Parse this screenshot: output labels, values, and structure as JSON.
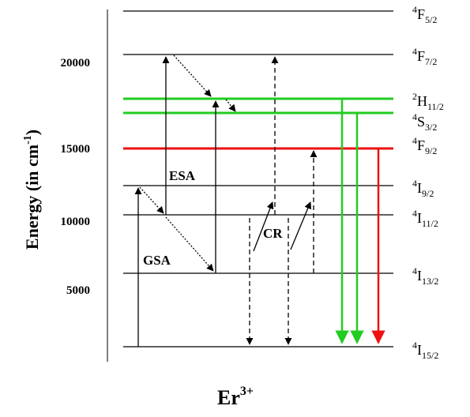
{
  "axis": {
    "title_main": "Energy (in cm",
    "title_sup": "-1",
    "title_end": ")",
    "ticks": [
      "20000",
      "15000",
      "10000",
      "5000"
    ]
  },
  "levels": [
    {
      "id": "f52",
      "term": "4F5/2",
      "sup": "4",
      "letter": "F",
      "sub": "5/2",
      "color": "#000000"
    },
    {
      "id": "f72",
      "term": "4F7/2",
      "sup": "4",
      "letter": "F",
      "sub": "7/2",
      "color": "#000000"
    },
    {
      "id": "h112",
      "term": "2H11/2",
      "sup": "2",
      "letter": "H",
      "sub": "11/2",
      "color": "#22cc22"
    },
    {
      "id": "s32",
      "term": "4S3/2",
      "sup": "4",
      "letter": "S",
      "sub": "3/2",
      "color": "#22cc22"
    },
    {
      "id": "f92",
      "term": "4F9/2",
      "sup": "4",
      "letter": "F",
      "sub": "9/2",
      "color": "#ee1111"
    },
    {
      "id": "i92",
      "term": "4I9/2",
      "sup": "4",
      "letter": "I",
      "sub": "9/2",
      "color": "#000000"
    },
    {
      "id": "i112",
      "term": "4I11/2",
      "sup": "4",
      "letter": "I",
      "sub": "11/2",
      "color": "#000000"
    },
    {
      "id": "i132",
      "term": "4I13/2",
      "sup": "4",
      "letter": "I",
      "sub": "13/2",
      "color": "#000000"
    },
    {
      "id": "i152",
      "term": "4I15/2",
      "sup": "4",
      "letter": "I",
      "sub": "15/2",
      "color": "#000000"
    }
  ],
  "process_labels": {
    "esa": "ESA",
    "gsa": "GSA",
    "cr": "CR"
  },
  "ion": {
    "symbol": "Er",
    "charge": "3+"
  },
  "colors": {
    "green_emission": "#22cc22",
    "red_emission": "#ee1111",
    "line": "#000000"
  }
}
